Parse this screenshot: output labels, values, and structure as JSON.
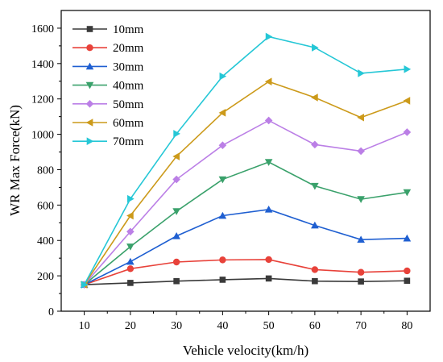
{
  "chart_data": {
    "type": "line",
    "xlabel": "Vehicle velocity(km/h)",
    "ylabel": "WR Max Force(kN)",
    "xlim": [
      5,
      85
    ],
    "ylim": [
      0,
      1700
    ],
    "x": [
      10,
      20,
      30,
      40,
      50,
      60,
      70,
      80
    ],
    "xticks": [
      10,
      20,
      30,
      40,
      50,
      60,
      70,
      80
    ],
    "yticks": [
      0,
      200,
      400,
      600,
      800,
      1000,
      1200,
      1400,
      1600
    ],
    "grid": false,
    "legend_position": "top-left",
    "series": [
      {
        "name": "10mm",
        "color": "#3a3a3a",
        "marker": "square",
        "values": [
          150,
          160,
          170,
          178,
          185,
          170,
          168,
          172
        ]
      },
      {
        "name": "20mm",
        "color": "#e8423a",
        "marker": "circle",
        "values": [
          150,
          240,
          278,
          290,
          292,
          235,
          220,
          228
        ]
      },
      {
        "name": "30mm",
        "color": "#1f5fd1",
        "marker": "triangle-up",
        "values": [
          150,
          280,
          425,
          540,
          575,
          485,
          405,
          412
        ]
      },
      {
        "name": "40mm",
        "color": "#3aa16b",
        "marker": "triangle-down",
        "values": [
          150,
          365,
          565,
          745,
          843,
          708,
          633,
          672
        ]
      },
      {
        "name": "50mm",
        "color": "#bb7fe6",
        "marker": "diamond",
        "values": [
          150,
          450,
          745,
          938,
          1078,
          942,
          905,
          1012
        ]
      },
      {
        "name": "60mm",
        "color": "#cc9a1a",
        "marker": "triangle-left",
        "values": [
          150,
          540,
          875,
          1122,
          1298,
          1208,
          1095,
          1190
        ]
      },
      {
        "name": "70mm",
        "color": "#25c7d6",
        "marker": "triangle-right",
        "values": [
          150,
          635,
          1003,
          1328,
          1552,
          1490,
          1345,
          1368
        ]
      }
    ]
  }
}
